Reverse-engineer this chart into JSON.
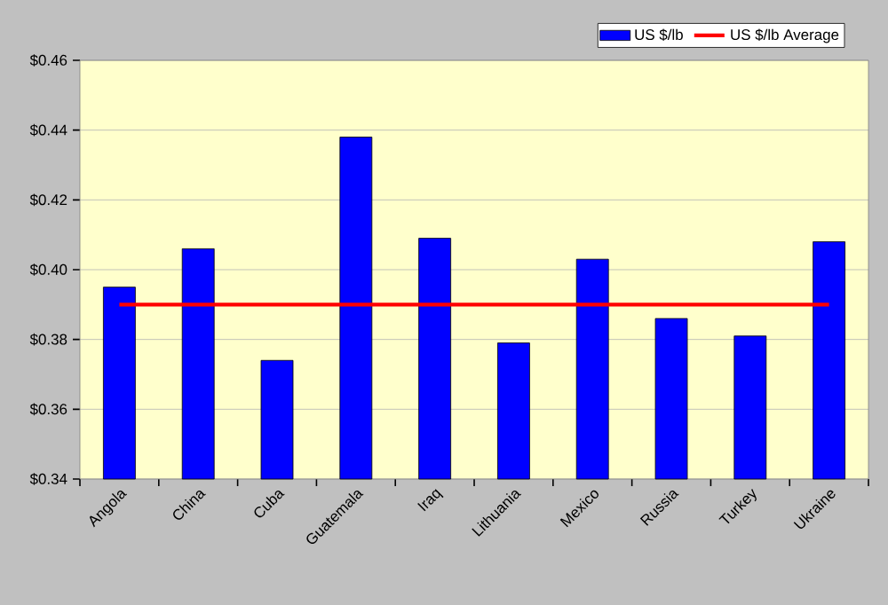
{
  "chart_data": {
    "type": "bar",
    "categories": [
      "Angola",
      "China",
      "Cuba",
      "Guatemala",
      "Iraq",
      "Lithuania",
      "Mexico",
      "Russia",
      "Turkey",
      "Ukraine"
    ],
    "series": [
      {
        "name": "US $/lb",
        "color": "#0000ff",
        "values": [
          0.395,
          0.406,
          0.374,
          0.438,
          0.409,
          0.379,
          0.403,
          0.386,
          0.381,
          0.408
        ]
      },
      {
        "name": "US $/lb Average",
        "type": "line",
        "color": "#ff0000",
        "values": [
          0.39,
          0.39,
          0.39,
          0.39,
          0.39,
          0.39,
          0.39,
          0.39,
          0.39,
          0.39
        ]
      }
    ],
    "ylim": [
      0.34,
      0.46
    ],
    "yticks": [
      {
        "value": 0.34,
        "label": "$0.34"
      },
      {
        "value": 0.36,
        "label": "$0.36"
      },
      {
        "value": 0.38,
        "label": "$0.38"
      },
      {
        "value": 0.4,
        "label": "$0.40"
      },
      {
        "value": 0.42,
        "label": "$0.42"
      },
      {
        "value": 0.44,
        "label": "$0.44"
      },
      {
        "value": 0.46,
        "label": "$0.46"
      }
    ],
    "grid": "y",
    "legend": "top right",
    "marker": "none",
    "line_style": "solid"
  }
}
